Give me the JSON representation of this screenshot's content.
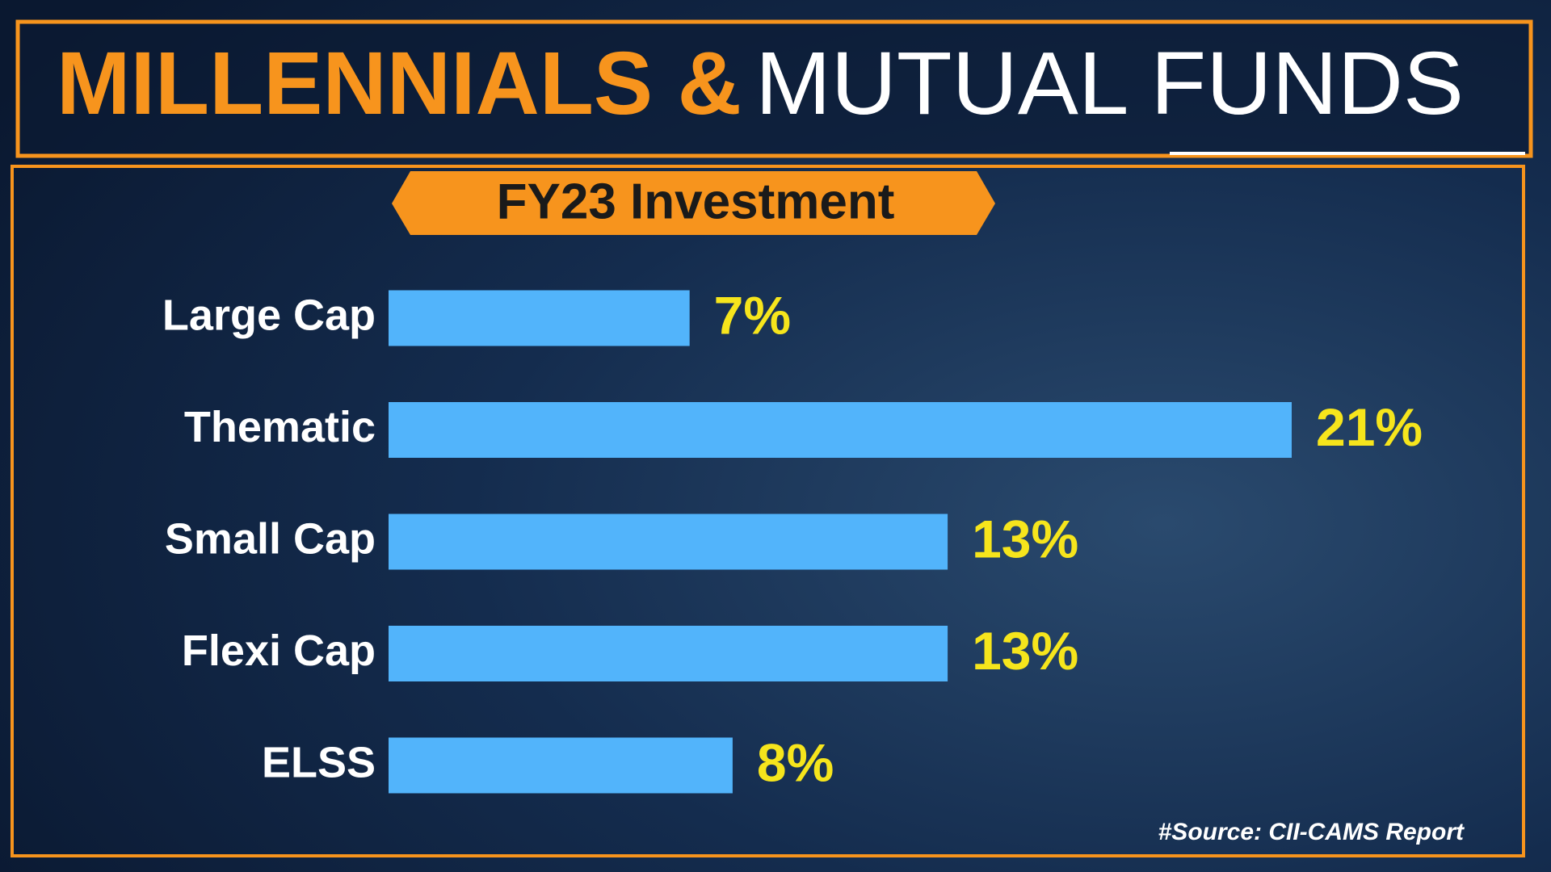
{
  "chart_data": {
    "type": "bar",
    "orientation": "horizontal",
    "title": [
      "MILLENNIALS &",
      "MUTUAL FUNDS"
    ],
    "subtitle": "FY23 Investment",
    "categories": [
      "Large Cap",
      "Thematic",
      "Small Cap",
      "Flexi Cap",
      "ELSS"
    ],
    "values": [
      7,
      21,
      13,
      13,
      8
    ],
    "value_labels": [
      "7%",
      "21%",
      "13%",
      "13%",
      "8%"
    ],
    "color": "#52b4fb",
    "source": "#Source: CII-CAMS Report"
  }
}
